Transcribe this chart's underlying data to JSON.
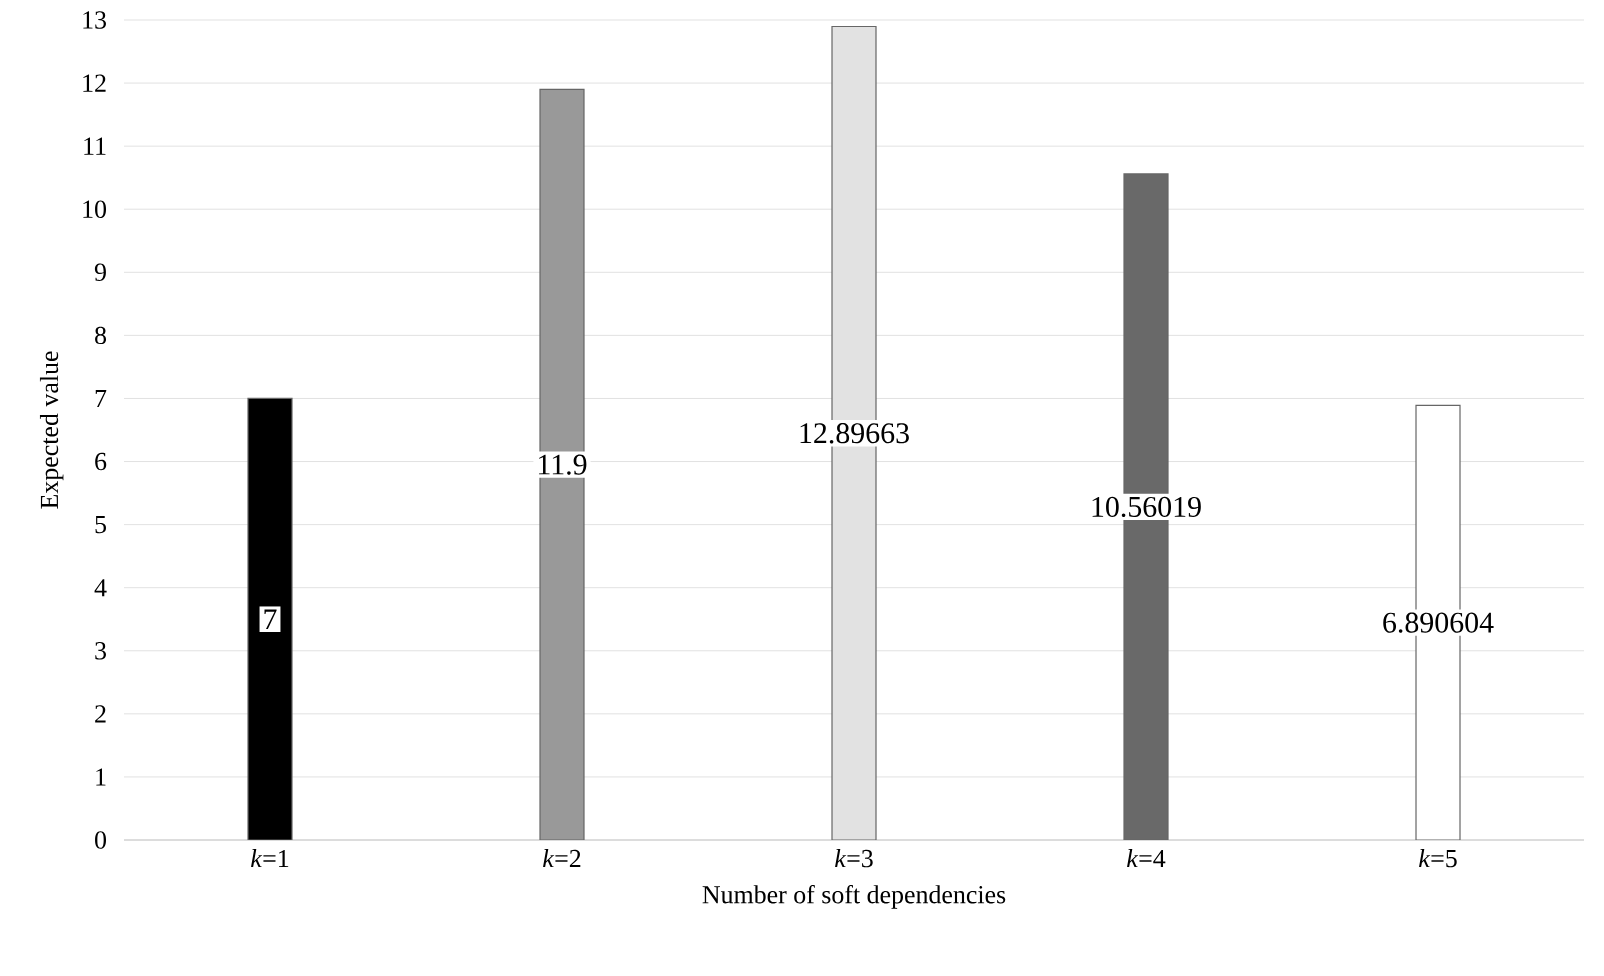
{
  "chart_data": {
    "type": "bar",
    "xlabel": "Number of soft dependencies",
    "ylabel": "Expected value",
    "categories": [
      "*k*=1",
      "*k*=2",
      "*k*=3",
      "*k*=4",
      "*k*=5"
    ],
    "values": [
      7,
      11.9,
      12.89663,
      10.56019,
      6.890604
    ],
    "colors": [
      "#000000",
      "#999999",
      "#e2e2e2",
      "#696969",
      "#ffffff"
    ],
    "value_labels": [
      "7",
      "11.9",
      "12.89663",
      "10.56019",
      "6.890604"
    ],
    "ylim": [
      0,
      13
    ],
    "yticks": [
      0,
      1,
      2,
      3,
      4,
      5,
      6,
      7,
      8,
      9,
      10,
      11,
      12,
      13
    ],
    "grid": "y"
  }
}
